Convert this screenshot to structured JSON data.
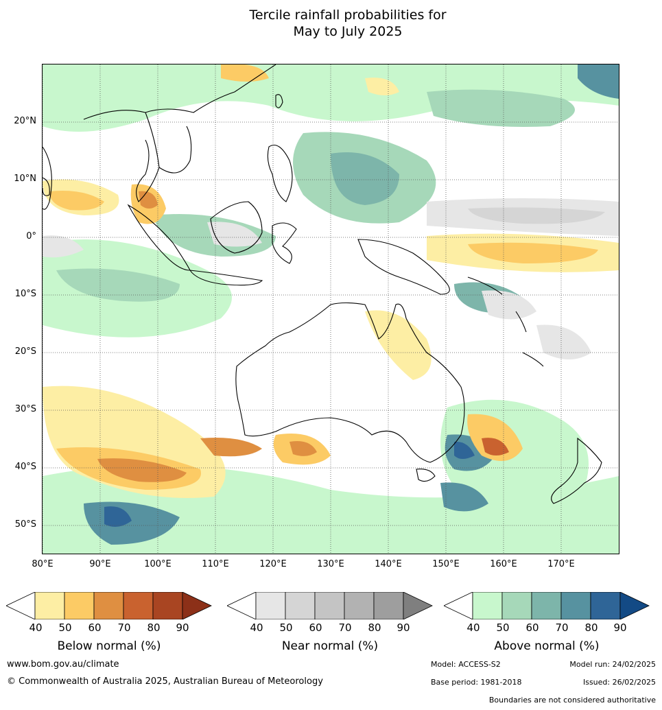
{
  "title": {
    "line1": "Tercile rainfall probabilities for",
    "line2": "May to July 2025"
  },
  "map": {
    "lat_labels": [
      "20°N",
      "10°N",
      "0°",
      "10°S",
      "20°S",
      "30°S",
      "40°S",
      "50°S"
    ],
    "lon_labels": [
      "80°E",
      "90°E",
      "100°E",
      "110°E",
      "120°E",
      "130°E",
      "140°E",
      "150°E",
      "160°E",
      "170°E"
    ],
    "lat_range": [
      -55,
      30
    ],
    "lon_range": [
      80,
      180
    ]
  },
  "colorbars": [
    {
      "title": "Below normal (%)",
      "ticks": [
        "40",
        "50",
        "60",
        "70",
        "80",
        "90"
      ],
      "colors": [
        "#fdeea4",
        "#fccb65",
        "#df8f41",
        "#c9622f",
        "#a94522",
        "#8c3018"
      ]
    },
    {
      "title": "Near normal (%)",
      "ticks": [
        "40",
        "50",
        "60",
        "70",
        "80",
        "90"
      ],
      "colors": [
        "#e6e6e6",
        "#d5d5d5",
        "#c4c4c4",
        "#b2b2b2",
        "#9e9e9e",
        "#7f7f7f"
      ]
    },
    {
      "title": "Above normal (%)",
      "ticks": [
        "40",
        "50",
        "60",
        "70",
        "80",
        "90"
      ],
      "colors": [
        "#c8f7cd",
        "#a6d8b9",
        "#7db5aa",
        "#5792a0",
        "#2f6597",
        "#134a85"
      ]
    }
  ],
  "footer": {
    "website": "www.bom.gov.au/climate",
    "copyright": "© Commonwealth of Australia 2025, Australian Bureau of Meteorology",
    "model": "Model: ACCESS-S2",
    "model_run": "Model run: 24/02/2025",
    "base_period": "Base period: 1981-2018",
    "issued": "Issued: 26/02/2025",
    "disclaimer": "Boundaries are not considered authoritative"
  }
}
